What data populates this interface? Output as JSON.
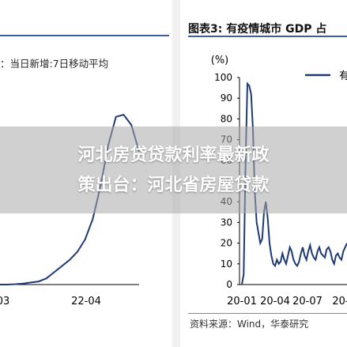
{
  "left_panel": {
    "title": "：当日新增:7日移动平均",
    "ticks": [
      "03",
      "22-04"
    ]
  },
  "right_panel": {
    "title": "图表3:  有疫情城市 GDP 占",
    "ylabel": "(%)",
    "y_ticks": [
      "100",
      "90",
      "80",
      "70",
      "60",
      "50",
      "40",
      "30",
      "20",
      "10",
      "0"
    ],
    "x_ticks": [
      "20-01",
      "20-04",
      "20-07",
      "20-"
    ],
    "legend_text": "有",
    "source": "资料来源：Wind，华泰研究"
  },
  "overlay": {
    "line1": "河北房贷贷款利率最新政",
    "line2": "策出台：河北省房屋贷款"
  },
  "chart_data": [
    {
      "type": "line",
      "title": "：当日新增:7日移动平均",
      "x": [
        "03",
        "",
        "",
        "",
        "",
        "",
        "",
        "",
        "",
        "",
        "",
        "",
        "22-04",
        "",
        "",
        "",
        "",
        "",
        ""
      ],
      "series": [
        {
          "values": [
            0,
            0,
            0.2,
            0.5,
            1,
            1.5,
            3,
            6,
            9,
            12,
            16,
            22,
            32,
            48,
            68,
            82,
            83,
            78,
            65
          ]
        }
      ],
      "ylim": [
        0,
        85
      ],
      "color": "#1f3a73"
    },
    {
      "type": "line",
      "title": "图表3:  有疫情城市 GDP 占",
      "ylabel": "(%)",
      "ylim": [
        0,
        100
      ],
      "x_ticks": [
        "20-01",
        "20-04",
        "20-07",
        "20-"
      ],
      "series": [
        {
          "name": "有",
          "color": "#1f3a73",
          "values": [
            0,
            5,
            60,
            97,
            96,
            92,
            75,
            45,
            30,
            25,
            20,
            22,
            35,
            40,
            32,
            20,
            14,
            10,
            9,
            12,
            10,
            11,
            15,
            12,
            10,
            14,
            18,
            16,
            12,
            10,
            9,
            11,
            15,
            18,
            14,
            12,
            16,
            19,
            15,
            13,
            12,
            16,
            18,
            15,
            14,
            13,
            17,
            18,
            16,
            12,
            10,
            14,
            15,
            13,
            12,
            16,
            18,
            20
          ]
        }
      ]
    }
  ]
}
